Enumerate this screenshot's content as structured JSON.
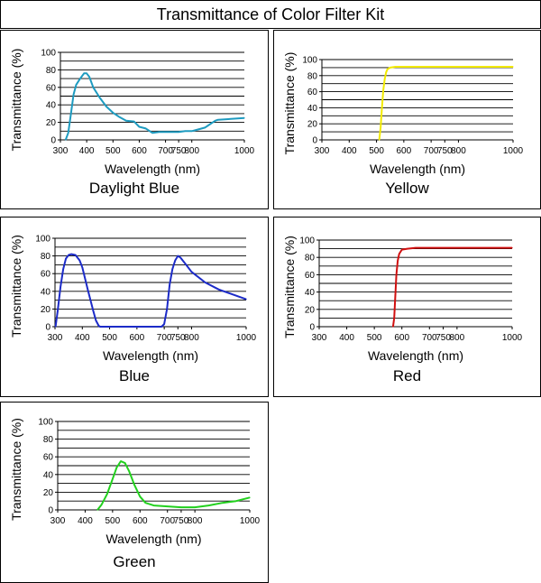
{
  "page_title": "Transmittance of Color Filter Kit",
  "chart_data": [
    {
      "type": "line",
      "name": "Daylight Blue",
      "color": "#1E9BC0",
      "xlabel": "Wavelength (nm)",
      "ylabel": "Transmittance (%)",
      "xlim": [
        300,
        1000
      ],
      "ylim": [
        0,
        100
      ],
      "x_ticks": [
        300,
        400,
        500,
        600,
        700,
        750,
        800,
        1000
      ],
      "y_ticks": [
        0,
        20,
        40,
        60,
        80,
        100
      ],
      "grid": true,
      "points": [
        [
          320,
          0
        ],
        [
          330,
          8
        ],
        [
          340,
          30
        ],
        [
          350,
          52
        ],
        [
          360,
          63
        ],
        [
          375,
          70
        ],
        [
          390,
          76
        ],
        [
          400,
          76
        ],
        [
          410,
          72
        ],
        [
          425,
          60
        ],
        [
          450,
          48
        ],
        [
          475,
          38
        ],
        [
          500,
          31
        ],
        [
          525,
          26
        ],
        [
          550,
          22
        ],
        [
          580,
          21
        ],
        [
          600,
          15
        ],
        [
          625,
          13
        ],
        [
          650,
          8
        ],
        [
          675,
          9
        ],
        [
          700,
          9
        ],
        [
          725,
          9
        ],
        [
          750,
          9
        ],
        [
          775,
          10
        ],
        [
          800,
          10
        ],
        [
          825,
          12
        ],
        [
          850,
          14
        ],
        [
          870,
          18
        ],
        [
          880,
          20
        ],
        [
          890,
          22
        ],
        [
          900,
          23
        ],
        [
          1000,
          25
        ]
      ]
    },
    {
      "type": "line",
      "name": "Yellow",
      "color": "#F2EA00",
      "xlabel": "Wavelength (nm)",
      "ylabel": "Transmittance (%)",
      "xlim": [
        300,
        1000
      ],
      "ylim": [
        0,
        100
      ],
      "x_ticks": [
        300,
        400,
        500,
        600,
        700,
        750,
        800,
        1000
      ],
      "y_ticks": [
        0,
        20,
        40,
        60,
        80,
        100
      ],
      "grid": true,
      "points": [
        [
          510,
          0
        ],
        [
          515,
          15
        ],
        [
          520,
          40
        ],
        [
          525,
          62
        ],
        [
          530,
          76
        ],
        [
          535,
          84
        ],
        [
          540,
          88
        ],
        [
          550,
          90
        ],
        [
          570,
          91
        ],
        [
          600,
          91
        ],
        [
          1000,
          91
        ]
      ]
    },
    {
      "type": "line",
      "name": "Blue",
      "color": "#1C2BC8",
      "xlabel": "Wavelength (nm)",
      "ylabel": "Transmittance (%)",
      "xlim": [
        300,
        1000
      ],
      "ylim": [
        0,
        100
      ],
      "x_ticks": [
        300,
        400,
        500,
        600,
        700,
        750,
        800,
        1000
      ],
      "y_ticks": [
        0,
        20,
        40,
        60,
        80,
        100
      ],
      "grid": true,
      "points": [
        [
          302,
          0
        ],
        [
          310,
          18
        ],
        [
          320,
          45
        ],
        [
          330,
          65
        ],
        [
          340,
          77
        ],
        [
          350,
          81
        ],
        [
          360,
          82
        ],
        [
          375,
          81
        ],
        [
          390,
          75
        ],
        [
          400,
          67
        ],
        [
          420,
          42
        ],
        [
          440,
          18
        ],
        [
          450,
          7
        ],
        [
          460,
          1
        ],
        [
          465,
          0
        ],
        [
          690,
          0
        ],
        [
          700,
          3
        ],
        [
          710,
          20
        ],
        [
          720,
          48
        ],
        [
          730,
          65
        ],
        [
          740,
          75
        ],
        [
          750,
          80
        ],
        [
          760,
          78
        ],
        [
          780,
          70
        ],
        [
          800,
          62
        ],
        [
          850,
          50
        ],
        [
          900,
          42
        ],
        [
          1000,
          31
        ]
      ]
    },
    {
      "type": "line",
      "name": "Red",
      "color": "#D01010",
      "xlabel": "Wavelength (nm)",
      "ylabel": "Transmittance (%)",
      "xlim": [
        300,
        1000
      ],
      "ylim": [
        0,
        100
      ],
      "x_ticks": [
        300,
        400,
        500,
        600,
        700,
        750,
        800,
        1000
      ],
      "y_ticks": [
        0,
        20,
        40,
        60,
        80,
        100
      ],
      "grid": true,
      "points": [
        [
          568,
          0
        ],
        [
          572,
          10
        ],
        [
          576,
          35
        ],
        [
          580,
          60
        ],
        [
          585,
          76
        ],
        [
          590,
          84
        ],
        [
          600,
          89
        ],
        [
          620,
          90
        ],
        [
          650,
          91
        ],
        [
          1000,
          91
        ]
      ]
    },
    {
      "type": "line",
      "name": "Green",
      "color": "#22D01E",
      "xlabel": "Wavelength (nm)",
      "ylabel": "Transmittance (%)",
      "xlim": [
        300,
        1000
      ],
      "ylim": [
        0,
        100
      ],
      "x_ticks": [
        300,
        400,
        500,
        600,
        700,
        750,
        800,
        1000
      ],
      "y_ticks": [
        0,
        20,
        40,
        60,
        80,
        100
      ],
      "grid": true,
      "points": [
        [
          445,
          0
        ],
        [
          460,
          6
        ],
        [
          480,
          18
        ],
        [
          500,
          35
        ],
        [
          515,
          48
        ],
        [
          530,
          55
        ],
        [
          545,
          53
        ],
        [
          560,
          44
        ],
        [
          580,
          28
        ],
        [
          600,
          15
        ],
        [
          620,
          8
        ],
        [
          650,
          5
        ],
        [
          700,
          4
        ],
        [
          750,
          3
        ],
        [
          800,
          3
        ],
        [
          850,
          5
        ],
        [
          900,
          8
        ],
        [
          950,
          10
        ],
        [
          1000,
          14
        ]
      ]
    }
  ]
}
